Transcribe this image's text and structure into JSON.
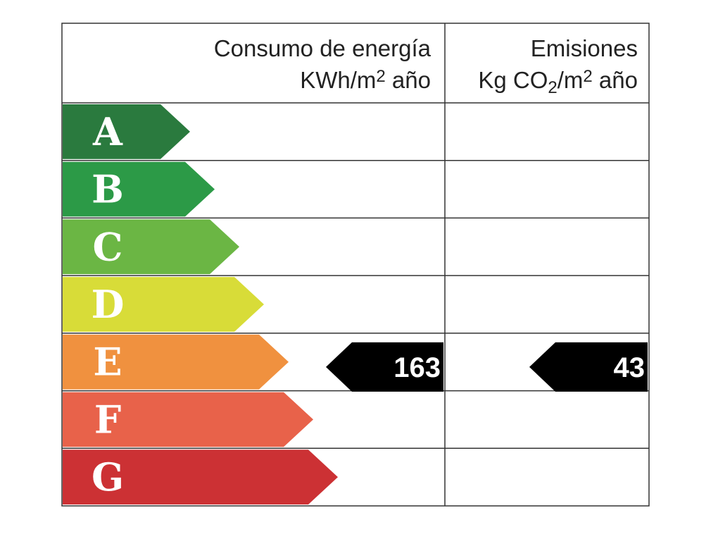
{
  "header": {
    "energy": {
      "title": "Consumo de energía",
      "unit": [
        "KWh/m",
        "2",
        " año"
      ]
    },
    "emissions": {
      "title": "Emisiones",
      "unit": [
        "Kg CO",
        "2",
        "/m",
        "2",
        " año"
      ]
    }
  },
  "classes": [
    {
      "letter": "A",
      "color": "#2a7a3e"
    },
    {
      "letter": "B",
      "color": "#2c9a47"
    },
    {
      "letter": "C",
      "color": "#6bb644"
    },
    {
      "letter": "D",
      "color": "#d8dc38"
    },
    {
      "letter": "E",
      "color": "#f0913f",
      "energy": 163,
      "emissions": 43
    },
    {
      "letter": "F",
      "color": "#e8624a"
    },
    {
      "letter": "G",
      "color": "#cc3134"
    }
  ]
}
